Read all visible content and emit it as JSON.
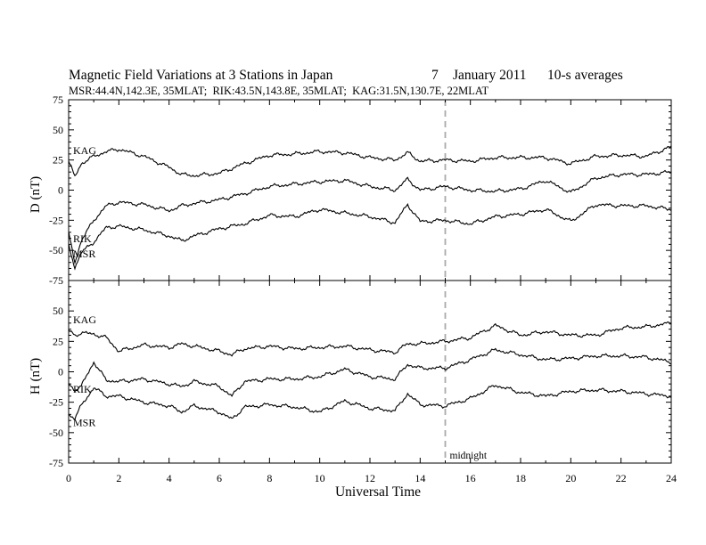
{
  "figure": {
    "title": "Magnetic Field Variations at 3 Stations in Japan",
    "date_day": "7",
    "date_month_year": "January 2011",
    "averaging": "10-s averages",
    "stations_line": "MSR:44.4N,142.3E, 35MLAT;  RIK:43.5N,143.8E, 35MLAT;  KAG:31.5N,130.7E, 22MLAT",
    "xlabel": "Universal Time",
    "midnight_label": "midnight",
    "midnight_ut": 15
  },
  "chart_data": [
    {
      "type": "line",
      "panel": "D",
      "ylabel": "D (nT)",
      "xlim": [
        0,
        24
      ],
      "ylim": [
        -75,
        75
      ],
      "yticks": [
        75,
        50,
        25,
        0,
        -25,
        -50,
        -75
      ],
      "xticks": [
        0,
        2,
        4,
        6,
        8,
        10,
        12,
        14,
        16,
        18,
        20,
        22,
        24
      ],
      "grid": false,
      "x": [
        0,
        0.25,
        0.5,
        1,
        1.5,
        2,
        3,
        4,
        4.5,
        5,
        6,
        7,
        8,
        9,
        10,
        11,
        12,
        13,
        13.5,
        14,
        15,
        16,
        17,
        18,
        19,
        20,
        21,
        22,
        23,
        24
      ],
      "series": [
        {
          "name": "KAG",
          "values": [
            24,
            11,
            22,
            28,
            32,
            34,
            28,
            19,
            13,
            12,
            14,
            22,
            29,
            30,
            32,
            31,
            27,
            25,
            31,
            24,
            25,
            24,
            27,
            27,
            27,
            22,
            28,
            29,
            28,
            36
          ]
        },
        {
          "name": "RIK",
          "values": [
            -36,
            -60,
            -42,
            -25,
            -13,
            -10,
            -12,
            -17,
            -13,
            -11,
            -8,
            -3,
            3,
            5,
            7,
            8,
            3,
            0,
            9,
            0,
            3,
            0,
            -1,
            1,
            8,
            -2,
            10,
            13,
            13,
            15
          ]
        },
        {
          "name": "MSR",
          "values": [
            -46,
            -64,
            -52,
            -43,
            -31,
            -30,
            -33,
            -38,
            -42,
            -38,
            -32,
            -28,
            -21,
            -22,
            -16,
            -19,
            -22,
            -27,
            -12,
            -26,
            -25,
            -28,
            -22,
            -20,
            -16,
            -26,
            -12,
            -13,
            -13,
            -16
          ]
        }
      ]
    },
    {
      "type": "line",
      "panel": "H",
      "ylabel": "H (nT)",
      "xlim": [
        0,
        24
      ],
      "ylim": [
        -75,
        75
      ],
      "yticks": [
        75,
        50,
        25,
        0,
        -25,
        -50,
        -75
      ],
      "xticks": [
        0,
        2,
        4,
        6,
        8,
        10,
        12,
        14,
        16,
        18,
        20,
        22,
        24
      ],
      "grid": false,
      "x": [
        0,
        0.25,
        0.5,
        1,
        1.5,
        2,
        3,
        4,
        4.5,
        5,
        6,
        6.5,
        7,
        8,
        9,
        10,
        11,
        12,
        13,
        13.5,
        14,
        15,
        16,
        17,
        18,
        19,
        20,
        21,
        22,
        23,
        24
      ],
      "series": [
        {
          "name": "KAG",
          "values": [
            34,
            30,
            32,
            31,
            28,
            17,
            22,
            20,
            23,
            21,
            17,
            14,
            19,
            21,
            19,
            20,
            21,
            18,
            16,
            23,
            23,
            25,
            28,
            38,
            30,
            33,
            30,
            30,
            36,
            37,
            40
          ]
        },
        {
          "name": "RIK",
          "values": [
            -10,
            -15,
            -12,
            8,
            -7,
            -8,
            -6,
            -10,
            -12,
            -8,
            -12,
            -20,
            -8,
            -6,
            -6,
            -4,
            2,
            -4,
            -6,
            6,
            3,
            3,
            10,
            18,
            14,
            10,
            11,
            13,
            13,
            12,
            8
          ]
        },
        {
          "name": "MSR",
          "values": [
            -35,
            -38,
            -28,
            -13,
            -20,
            -20,
            -25,
            -28,
            -33,
            -28,
            -33,
            -39,
            -29,
            -27,
            -29,
            -33,
            -24,
            -30,
            -32,
            -18,
            -27,
            -28,
            -22,
            -11,
            -17,
            -20,
            -16,
            -15,
            -16,
            -18,
            -20
          ]
        }
      ]
    }
  ]
}
